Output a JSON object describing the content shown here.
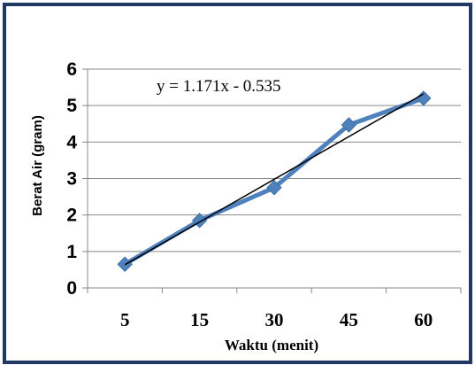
{
  "chart_data": {
    "type": "line",
    "categories": [
      "5",
      "15",
      "30",
      "45",
      "60"
    ],
    "series": [
      {
        "values": [
          0.65,
          1.85,
          2.75,
          4.47,
          5.2
        ],
        "color": "#4f81bd"
      }
    ],
    "trendline": {
      "type": "linear",
      "equation": "y = 1.171x - 0.535",
      "slope": 1.171,
      "intercept": -0.535,
      "color": "#000000"
    },
    "xlabel": "Waktu (menit)",
    "ylabel": "Berat Air (gram)",
    "ylim": [
      0,
      6
    ],
    "yticks": [
      "0",
      "1",
      "2",
      "3",
      "4",
      "5",
      "6"
    ],
    "grid": "horizontal",
    "legend": "none",
    "border_color": "#1f3864",
    "marker": "diamond"
  }
}
